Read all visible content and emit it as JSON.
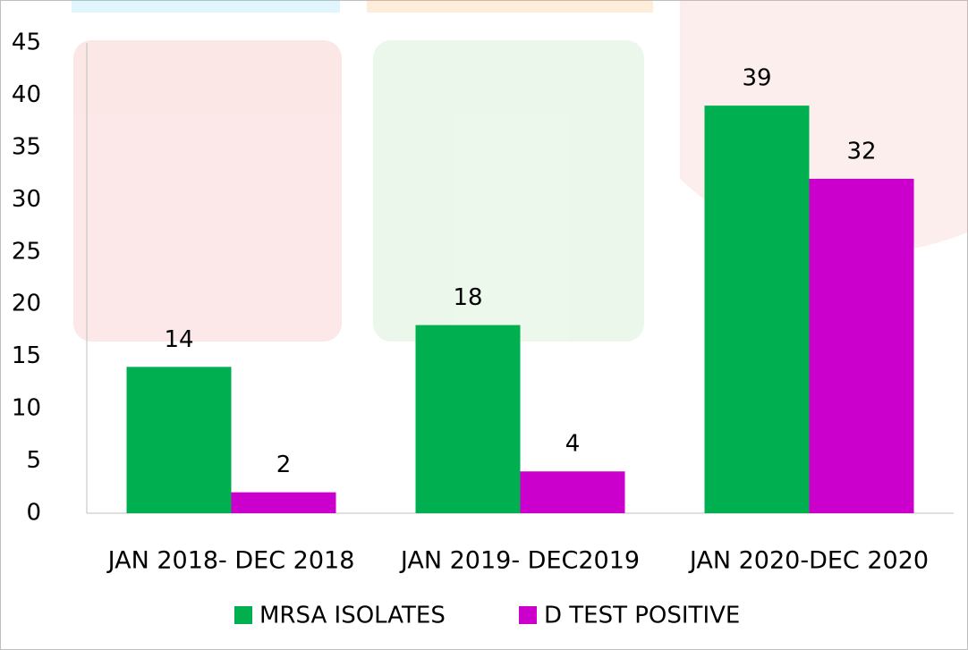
{
  "chart_data": {
    "type": "bar",
    "categories": [
      "JAN 2018- DEC 2018",
      "JAN 2019- DEC2019",
      "JAN 2020-DEC 2020"
    ],
    "series": [
      {
        "name": "MRSA ISOLATES",
        "color": "#00b050",
        "values": [
          14,
          18,
          39
        ]
      },
      {
        "name": "D TEST POSITIVE",
        "color": "#cc00cc",
        "values": [
          2,
          4,
          32
        ]
      }
    ],
    "ylim": [
      0,
      45
    ],
    "yticks": [
      0,
      5,
      10,
      15,
      20,
      25,
      30,
      35,
      40,
      45
    ],
    "grid": false,
    "legend": "bottom"
  }
}
